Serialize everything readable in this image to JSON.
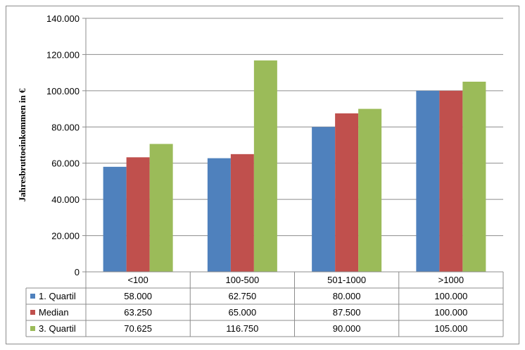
{
  "chart_data": {
    "type": "bar",
    "categories": [
      "<100",
      "100-500",
      "501-1000",
      ">1000"
    ],
    "series": [
      {
        "name": "1. Quartil",
        "color": "#4f81bd",
        "values": [
          58000,
          62750,
          80000,
          100000
        ],
        "display": [
          "58.000",
          "62.750",
          "80.000",
          "100.000"
        ]
      },
      {
        "name": "Median",
        "color": "#c0504d",
        "values": [
          63250,
          65000,
          87500,
          100000
        ],
        "display": [
          "63.250",
          "65.000",
          "87.500",
          "100.000"
        ]
      },
      {
        "name": "3. Quartil",
        "color": "#9bbb59",
        "values": [
          70625,
          116750,
          90000,
          105000
        ],
        "display": [
          "70.625",
          "116.750",
          "90.000",
          "105.000"
        ]
      }
    ],
    "ylabel": "Jahresbruttoeinkommen in €",
    "ylim": [
      0,
      140000
    ],
    "yticks": [
      0,
      20000,
      40000,
      60000,
      80000,
      100000,
      120000,
      140000
    ],
    "ytick_labels": [
      "0",
      "20.000",
      "40.000",
      "60.000",
      "80.000",
      "100.000",
      "120.000",
      "140.000"
    ],
    "grid": true,
    "legend": "data-table"
  }
}
